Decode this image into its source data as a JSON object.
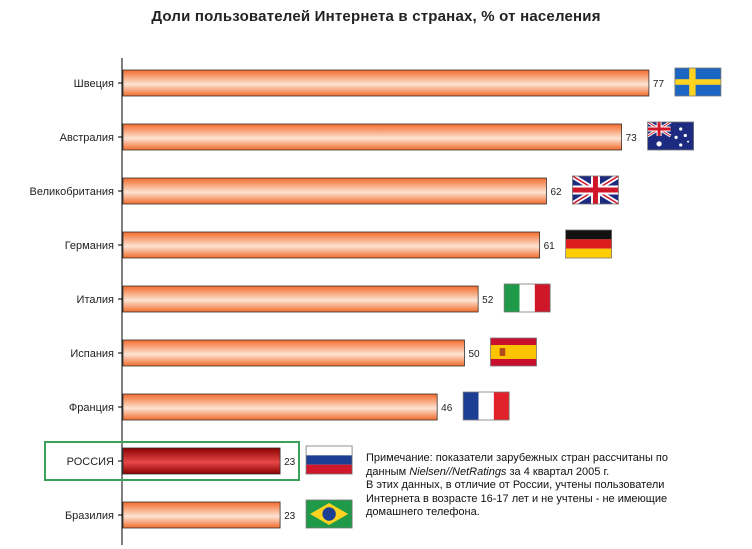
{
  "chart_data": {
    "type": "bar",
    "orientation": "horizontal",
    "title": "Доли пользователей Интернета в странах, % от населения",
    "categories": [
      "Швеция",
      "Австралия",
      "Великобритания",
      "Германия",
      "Италия",
      "Испания",
      "Франция",
      "РОССИЯ",
      "Бразилия"
    ],
    "values": [
      77,
      73,
      62,
      61,
      52,
      50,
      46,
      23,
      23
    ],
    "value_labels": [
      "77",
      "73",
      "62",
      "61",
      "52",
      "50",
      "46",
      "23",
      "23"
    ],
    "highlight": "РОССИЯ",
    "flags": [
      "sweden-flag",
      "australia-flag",
      "uk-flag",
      "germany-flag",
      "italy-flag",
      "spain-flag",
      "france-flag",
      "russia-flag",
      "brazil-flag"
    ],
    "xlim": [
      0,
      100
    ],
    "grid": false,
    "colors": {
      "bar_dark": "#f26a2a",
      "bar_light": "#fde3d3",
      "highlight_dark": "#8a0000",
      "highlight_light": "#e84848",
      "highlight_box": "#3aa05a"
    }
  },
  "note": {
    "prefix": "Примечание: показатели зарубежных стран рассчитаны по данным ",
    "source": "Nielsen//NetRatings",
    "suffix": " за 4 квартал 2005 г.",
    "line2": "В этих данных, в отличие от России, учтены пользователи Интернета в возрасте 16-17 лет и не учтены - не имеющие домашнего телефона."
  }
}
